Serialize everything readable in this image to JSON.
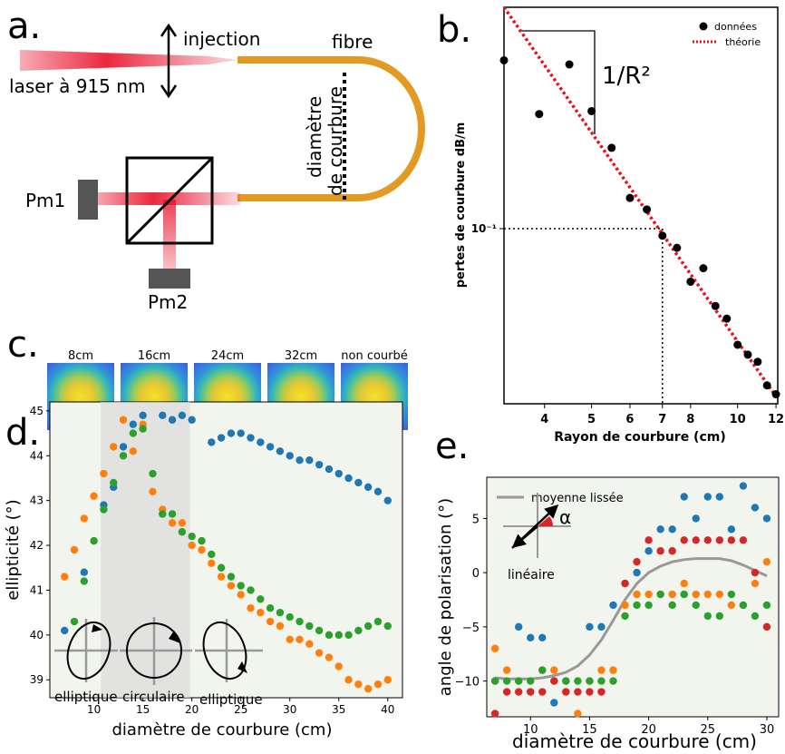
{
  "panel_a": {
    "letter": "a.",
    "labels": {
      "injection": "injection",
      "fibre": "fibre",
      "laser": "laser à 915 nm",
      "diametre": "diamètre",
      "de_courbure": "de courbure",
      "pm1": "Pm1",
      "pm2": "Pm2"
    },
    "colors": {
      "fiber": "#e39a22",
      "beam": "#e8102a",
      "detector": "#555555"
    }
  },
  "panel_c": {
    "letter": "c.",
    "images": [
      {
        "label": "8cm"
      },
      {
        "label": "16cm"
      },
      {
        "label": "24cm"
      },
      {
        "label": "32cm"
      },
      {
        "label": "non courbé"
      }
    ]
  },
  "chart_data": [
    {
      "panel": "b.",
      "type": "scatter",
      "scale": "log-log",
      "xlabel": "Rayon de courbure (cm)",
      "ylabel": "pertes de courbure dB/m",
      "xticks": [
        "4",
        "5",
        "6",
        "7",
        "8",
        "10",
        "12"
      ],
      "yticks": [
        "10⁻¹"
      ],
      "xlim": [
        3.3,
        12.1
      ],
      "ylim": [
        0.028,
        0.5
      ],
      "legend": [
        "données",
        "théorie"
      ],
      "legend_position": "top-right",
      "annotation": "1/R²",
      "reference_point": {
        "x": 7,
        "y": 0.1
      },
      "series": [
        {
          "name": "données",
          "style": "markers",
          "color": "#000000",
          "x": [
            3.3,
            3.9,
            4.5,
            5.0,
            5.5,
            6.0,
            6.5,
            7.0,
            7.5,
            8.0,
            8.5,
            9.0,
            9.5,
            10.0,
            10.5,
            11.0,
            11.5,
            12.0
          ],
          "y": [
            0.34,
            0.23,
            0.33,
            0.235,
            0.18,
            0.125,
            0.115,
            0.095,
            0.087,
            0.068,
            0.075,
            0.057,
            0.052,
            0.043,
            0.04,
            0.038,
            0.032,
            0.03
          ]
        },
        {
          "name": "théorie",
          "style": "dotted-line",
          "color": "#e8101a",
          "x": [
            3.3,
            12.1
          ],
          "y": [
            0.5,
            0.029
          ]
        }
      ]
    },
    {
      "panel": "d.",
      "type": "scatter",
      "xlabel": "diamètre de courbure (cm)",
      "ylabel": "ellipticité (°)",
      "xticks": [
        "10",
        "15",
        "20",
        "25",
        "30",
        "35",
        "40"
      ],
      "yticks": [
        "39",
        "40",
        "41",
        "42",
        "43",
        "44",
        "45"
      ],
      "xlim": [
        5.5,
        41.5
      ],
      "ylim": [
        38.6,
        45.2
      ],
      "shaded_band": [
        10.7,
        19.8
      ],
      "insets": [
        {
          "label": "elliptique"
        },
        {
          "label": "circulaire"
        },
        {
          "label": "elliptique"
        }
      ],
      "series": [
        {
          "color": "#1f77b4",
          "x": [
            7,
            9,
            11,
            12,
            13,
            14,
            15,
            17,
            18,
            19,
            20,
            22,
            23,
            24,
            25,
            26,
            27,
            28,
            29,
            30,
            31,
            32,
            33,
            34,
            35,
            36,
            37,
            38,
            39,
            40
          ],
          "y": [
            40.1,
            41.4,
            42.9,
            43.3,
            44.2,
            44.7,
            44.9,
            44.9,
            44.8,
            44.9,
            44.8,
            44.3,
            44.4,
            44.5,
            44.5,
            44.4,
            44.3,
            44.2,
            44.1,
            44.0,
            43.9,
            43.9,
            43.8,
            43.7,
            43.6,
            43.5,
            43.4,
            43.3,
            43.2,
            43.0
          ]
        },
        {
          "color": "#ff7f0e",
          "x": [
            7,
            8,
            9,
            10,
            11,
            12,
            13,
            14,
            15,
            16,
            17,
            18,
            19,
            20,
            21,
            22,
            23,
            24,
            25,
            26,
            27,
            28,
            29,
            30,
            31,
            32,
            33,
            34,
            35,
            36,
            37,
            38,
            39,
            40
          ],
          "y": [
            41.3,
            41.9,
            42.6,
            43.1,
            43.6,
            44.2,
            44.8,
            44.1,
            44.7,
            43.2,
            42.8,
            42.5,
            42.5,
            42.0,
            41.9,
            41.6,
            41.3,
            41.1,
            40.9,
            40.6,
            40.5,
            40.3,
            40.2,
            39.9,
            39.9,
            39.8,
            39.6,
            39.5,
            39.3,
            39.0,
            38.9,
            38.8,
            38.9,
            39.0
          ]
        },
        {
          "color": "#2ca02c",
          "x": [
            8,
            9,
            10,
            11,
            12,
            13,
            14,
            15,
            16,
            17,
            18,
            19,
            20,
            21,
            22,
            23,
            24,
            25,
            26,
            27,
            28,
            29,
            30,
            31,
            32,
            33,
            34,
            35,
            36,
            37,
            38,
            39,
            40
          ],
          "y": [
            40.3,
            41.2,
            42.1,
            42.8,
            43.4,
            44.0,
            44.5,
            44.6,
            43.6,
            42.7,
            42.7,
            42.3,
            42.2,
            42.1,
            41.8,
            41.5,
            41.3,
            41.1,
            41.0,
            40.8,
            40.6,
            40.5,
            40.4,
            40.3,
            40.2,
            40.1,
            40.0,
            40.0,
            40.0,
            40.1,
            40.2,
            40.3,
            40.2
          ]
        }
      ]
    },
    {
      "panel": "e.",
      "type": "scatter",
      "xlabel": "diamètre de courbure (cm)",
      "ylabel": "angle de polarisation (°)",
      "xticks": [
        "10",
        "15",
        "20",
        "25",
        "30"
      ],
      "yticks": [
        "−10",
        "−5",
        "0",
        "5"
      ],
      "xlim": [
        6.3,
        31.0
      ],
      "ylim": [
        -13.3,
        8.8
      ],
      "legend": [
        "moyenne lissée"
      ],
      "legend_position": "top-left",
      "inset_labels": {
        "alpha": "α",
        "lineaire": "linéaire"
      },
      "series": [
        {
          "name": "moyenne lissée",
          "style": "line",
          "color": "#999999",
          "x": [
            7,
            8,
            9,
            10,
            11,
            12,
            13,
            14,
            15,
            16,
            17,
            18,
            19,
            20,
            21,
            22,
            23,
            24,
            25,
            26,
            27,
            28,
            29,
            30
          ],
          "y": [
            -9.7,
            -9.8,
            -9.8,
            -9.8,
            -9.7,
            -9.5,
            -9.2,
            -8.6,
            -7.6,
            -6.2,
            -4.4,
            -2.5,
            -1.0,
            0.0,
            0.6,
            1.0,
            1.2,
            1.3,
            1.3,
            1.3,
            1.1,
            0.7,
            0.2,
            -0.3
          ]
        },
        {
          "color": "#1f77b4",
          "x": [
            7,
            9,
            10,
            11,
            12,
            13,
            15,
            16,
            17,
            18,
            19,
            20,
            21,
            22,
            23,
            24,
            25,
            26,
            27,
            28,
            29,
            30
          ],
          "y": [
            -10,
            -5,
            -6,
            -6,
            -12,
            -10,
            -5,
            -5,
            -3,
            -1,
            0,
            2,
            4,
            4,
            7,
            5,
            7,
            7,
            4,
            8,
            6,
            5
          ]
        },
        {
          "color": "#ff7f0e",
          "x": [
            7,
            8,
            9,
            10,
            11,
            12,
            13,
            14,
            15,
            16,
            17,
            18,
            19,
            20,
            21,
            22,
            23,
            24,
            25,
            26,
            27,
            28,
            29,
            30
          ],
          "y": [
            -7,
            -9,
            -10,
            -11,
            -9,
            -9,
            -11,
            -13,
            -10,
            -9,
            -9,
            -3,
            -2,
            -2,
            -2,
            -2,
            -1,
            -2,
            -2,
            -2,
            -3,
            -3,
            -1,
            1
          ]
        },
        {
          "color": "#2ca02c",
          "x": [
            7,
            8,
            9,
            10,
            11,
            12,
            13,
            14,
            15,
            16,
            17,
            18,
            19,
            20,
            21,
            22,
            23,
            24,
            25,
            26,
            27,
            28,
            29,
            30
          ],
          "y": [
            -10,
            -10,
            -10,
            -10,
            -9,
            -10,
            -10,
            -10,
            -10,
            -10,
            -10,
            -4,
            -3,
            -3,
            -2,
            -3,
            -2,
            -3,
            -4,
            -4,
            -2,
            -3,
            -4,
            -3
          ]
        },
        {
          "color": "#d62728",
          "x": [
            7,
            8,
            9,
            10,
            11,
            12,
            13,
            14,
            15,
            16,
            18,
            19,
            20,
            21,
            22,
            23,
            24,
            25,
            26,
            27,
            28,
            29,
            30
          ],
          "y": [
            -13,
            -11,
            -11,
            -11,
            -11,
            -10,
            -11,
            -11,
            -11,
            -11,
            -1,
            1,
            3,
            2,
            2,
            3,
            3,
            3,
            3,
            3,
            3,
            0,
            -5
          ]
        }
      ]
    }
  ]
}
